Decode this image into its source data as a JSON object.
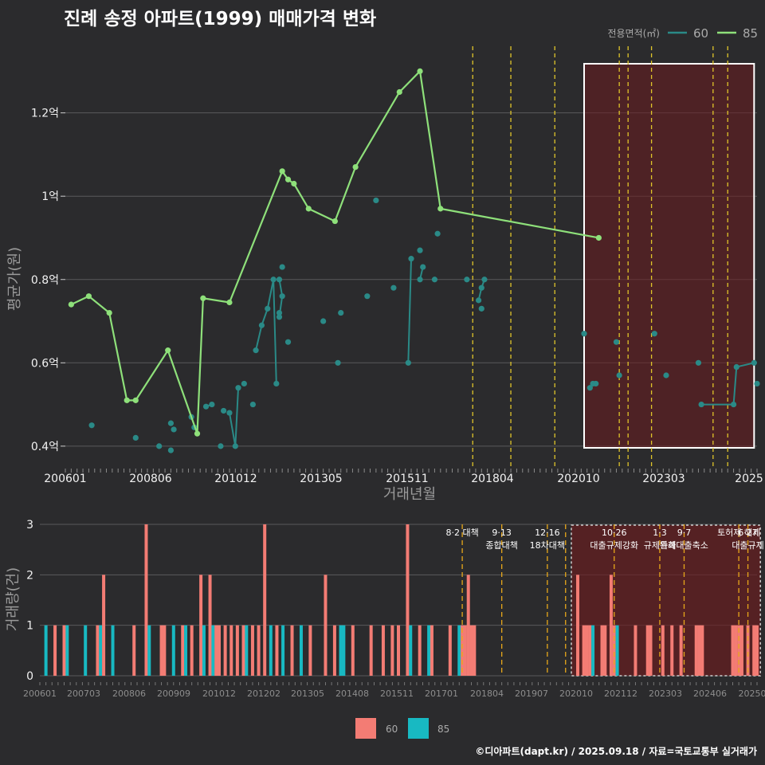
{
  "title": "진례 송정 아파트(1999) 매매가격 변화",
  "credit": "©디아파트(dapt.kr) / 2025.09.18 / 자료=국토교통부 실거래가",
  "colors": {
    "s60": "#2a8a87",
    "s85": "#8ee07a",
    "bar60": "#f37c74",
    "bar85": "#18b9c2",
    "vline": "#e0c52a",
    "vline2": "#e8a81a",
    "hilite": "#6b1c1f"
  },
  "chart_data": [
    {
      "type": "line",
      "xlabel": "거래년월",
      "ylabel": "평균가(원)",
      "xlim": [
        "2006-01",
        "2025-09"
      ],
      "ylim": [
        0.35,
        1.36
      ],
      "x_tick_labels": [
        "200601",
        "200806",
        "201012",
        "201305",
        "201511",
        "201804",
        "202010",
        "202303",
        "2025"
      ],
      "y_tick_labels": [
        "0.4억",
        "0.6억",
        "0.8억",
        "1억",
        "1.2억"
      ],
      "y_tick_values": [
        0.4,
        0.6,
        0.8,
        1.0,
        1.2
      ],
      "legend": {
        "title": "전용면적(㎡)",
        "position": "top-right"
      },
      "highlight": {
        "from": "2020-10",
        "to": "2025-08"
      },
      "event_lines": [
        "2017-08",
        "2018-09",
        "2019-12",
        "2021-10",
        "2022-01",
        "2022-09",
        "2024-06",
        "2024-11"
      ],
      "series": [
        {
          "name": "85",
          "points": [
            [
              "2006-03",
              0.74
            ],
            [
              "2006-09",
              0.76
            ],
            [
              "2007-04",
              0.72
            ],
            [
              "2007-10",
              0.51
            ],
            [
              "2008-01",
              0.51
            ],
            [
              "2008-12",
              0.63
            ],
            [
              "2009-10",
              0.43
            ],
            [
              "2009-12",
              0.755
            ],
            [
              "2010-09",
              0.745
            ],
            [
              "2012-03",
              1.06
            ],
            [
              "2012-05",
              1.04
            ],
            [
              "2012-07",
              1.03
            ],
            [
              "2012-12",
              0.97
            ],
            [
              "2013-09",
              0.94
            ],
            [
              "2014-04",
              1.07
            ],
            [
              "2015-07",
              1.25
            ],
            [
              "2016-02",
              1.3
            ],
            [
              "2016-09",
              0.97
            ],
            [
              "2021-03",
              0.9
            ]
          ]
        },
        {
          "name": "60",
          "points": [
            [
              "2006-10",
              0.45
            ],
            [
              "2008-01",
              0.42
            ],
            [
              "2008-09",
              0.4
            ],
            [
              "2009-01",
              0.39
            ],
            [
              "2009-02",
              0.44
            ],
            [
              "2009-01",
              0.455
            ],
            [
              "2009-08",
              0.47
            ],
            [
              "2009-09",
              0.445
            ],
            [
              "2010-01",
              0.495
            ],
            [
              "2010-03",
              0.5
            ],
            [
              "2010-06",
              0.4
            ],
            [
              "2010-07",
              0.485
            ],
            [
              "2010-09",
              0.48
            ],
            [
              "2010-11",
              0.4
            ],
            [
              "2010-12",
              0.54
            ],
            [
              "2011-02",
              0.55
            ],
            [
              "2011-05",
              0.5
            ],
            [
              "2011-06",
              0.63
            ],
            [
              "2011-08",
              0.69
            ],
            [
              "2011-10",
              0.73
            ],
            [
              "2011-12",
              0.8
            ],
            [
              "2012-01",
              0.55
            ],
            [
              "2012-02",
              0.8
            ],
            [
              "2012-03",
              0.76
            ],
            [
              "2012-02",
              0.71
            ],
            [
              "2012-02",
              0.72
            ],
            [
              "2012-03",
              0.83
            ],
            [
              "2012-05",
              0.65
            ],
            [
              "2013-05",
              0.7
            ],
            [
              "2013-10",
              0.6
            ],
            [
              "2013-11",
              0.72
            ],
            [
              "2014-08",
              0.76
            ],
            [
              "2014-11",
              0.99
            ],
            [
              "2015-05",
              0.78
            ],
            [
              "2015-10",
              0.6
            ],
            [
              "2015-11",
              0.85
            ],
            [
              "2016-02",
              0.87
            ],
            [
              "2016-02",
              0.8
            ],
            [
              "2016-03",
              0.83
            ],
            [
              "2016-07",
              0.8
            ],
            [
              "2016-08",
              0.91
            ],
            [
              "2017-06",
              0.8
            ],
            [
              "2017-10",
              0.75
            ],
            [
              "2017-11",
              0.78
            ],
            [
              "2017-12",
              0.8
            ],
            [
              "2017-11",
              0.73
            ],
            [
              "2020-10",
              0.67
            ],
            [
              "2020-12",
              0.54
            ],
            [
              "2021-01",
              0.55
            ],
            [
              "2021-02",
              0.55
            ],
            [
              "2021-09",
              0.65
            ],
            [
              "2021-10",
              0.57
            ],
            [
              "2022-10",
              0.67
            ],
            [
              "2023-02",
              0.57
            ],
            [
              "2024-01",
              0.6
            ],
            [
              "2024-02",
              0.5
            ],
            [
              "2025-01",
              0.5
            ],
            [
              "2025-02",
              0.59
            ],
            [
              "2025-08",
              0.6
            ],
            [
              "2025-09",
              0.55
            ]
          ]
        }
      ]
    },
    {
      "type": "bar",
      "ylabel": "거래량(건)",
      "ylim": [
        0,
        3
      ],
      "y_tick_labels": [
        "0",
        "1",
        "2",
        "3"
      ],
      "x_tick_labels": [
        "200601",
        "200703",
        "200806",
        "200909",
        "201012",
        "201202",
        "201305",
        "201408",
        "201511",
        "201701",
        "201804",
        "201907",
        "202010",
        "202112",
        "202303",
        "202406",
        "20250"
      ],
      "legend": {
        "position": "bottom",
        "items": [
          "60",
          "85"
        ]
      },
      "highlight": {
        "from": "2020-10",
        "to": "2025-08"
      },
      "events": [
        {
          "x": "2017-08",
          "labels": [
            "8·2 대책"
          ]
        },
        {
          "x": "2018-09",
          "labels": [
            "9·13",
            "종합대책"
          ]
        },
        {
          "x": "2019-12",
          "labels": [
            "12·16",
            "18차대책"
          ]
        },
        {
          "x": "2020-06",
          "labels": []
        },
        {
          "x": "2021-10",
          "labels": [
            "10·26",
            "대출규제강화"
          ]
        },
        {
          "x": "2023-01",
          "labels": [
            "1·3",
            "규제완화"
          ]
        },
        {
          "x": "2023-09",
          "labels": [
            "9·7",
            "특례대출축소"
          ]
        },
        {
          "x": "2025-06",
          "labels": [
            "6·27",
            "대출규제"
          ]
        },
        {
          "x": "2025-03",
          "labels": [
            "토허제 해제"
          ]
        }
      ],
      "bars": [
        [
          "2006-03",
          1,
          "85"
        ],
        [
          "2006-06",
          1,
          "60"
        ],
        [
          "2006-09",
          1,
          "60"
        ],
        [
          "2006-10",
          1,
          "85"
        ],
        [
          "2007-04",
          1,
          "85"
        ],
        [
          "2007-08",
          1,
          "60"
        ],
        [
          "2007-09",
          1,
          "85"
        ],
        [
          "2007-10",
          2,
          "60"
        ],
        [
          "2008-01",
          1,
          "85"
        ],
        [
          "2008-08",
          1,
          "60"
        ],
        [
          "2008-12",
          3,
          "60"
        ],
        [
          "2009-01",
          1,
          "85"
        ],
        [
          "2009-05",
          1,
          "60"
        ],
        [
          "2009-06",
          1,
          "60"
        ],
        [
          "2009-09",
          1,
          "85"
        ],
        [
          "2009-12",
          1,
          "60"
        ],
        [
          "2010-01",
          1,
          "85"
        ],
        [
          "2010-03",
          1,
          "60"
        ],
        [
          "2010-06",
          2,
          "60"
        ],
        [
          "2010-07",
          1,
          "85"
        ],
        [
          "2010-09",
          2,
          "60"
        ],
        [
          "2010-10",
          1,
          "85"
        ],
        [
          "2010-11",
          1,
          "60"
        ],
        [
          "2010-12",
          1,
          "60"
        ],
        [
          "2011-02",
          1,
          "60"
        ],
        [
          "2011-04",
          1,
          "60"
        ],
        [
          "2011-06",
          1,
          "60"
        ],
        [
          "2011-08",
          1,
          "60"
        ],
        [
          "2011-09",
          1,
          "85"
        ],
        [
          "2011-11",
          1,
          "60"
        ],
        [
          "2012-01",
          1,
          "60"
        ],
        [
          "2012-03",
          3,
          "60"
        ],
        [
          "2012-05",
          1,
          "85"
        ],
        [
          "2012-07",
          1,
          "60"
        ],
        [
          "2012-09",
          1,
          "85"
        ],
        [
          "2012-12",
          1,
          "60"
        ],
        [
          "2013-03",
          1,
          "85"
        ],
        [
          "2013-06",
          1,
          "60"
        ],
        [
          "2013-11",
          2,
          "60"
        ],
        [
          "2014-02",
          1,
          "60"
        ],
        [
          "2014-04",
          1,
          "85"
        ],
        [
          "2014-05",
          1,
          "85"
        ],
        [
          "2014-08",
          1,
          "60"
        ],
        [
          "2015-02",
          1,
          "60"
        ],
        [
          "2015-06",
          1,
          "60"
        ],
        [
          "2015-09",
          1,
          "60"
        ],
        [
          "2015-11",
          1,
          "60"
        ],
        [
          "2016-02",
          3,
          "60"
        ],
        [
          "2016-03",
          1,
          "85"
        ],
        [
          "2016-06",
          1,
          "60"
        ],
        [
          "2016-09",
          1,
          "85"
        ],
        [
          "2016-10",
          1,
          "60"
        ],
        [
          "2017-04",
          1,
          "60"
        ],
        [
          "2017-07",
          1,
          "85"
        ],
        [
          "2017-08",
          1,
          "60"
        ],
        [
          "2017-09",
          1,
          "60"
        ],
        [
          "2017-10",
          2,
          "60"
        ],
        [
          "2017-11",
          1,
          "60"
        ],
        [
          "2017-12",
          1,
          "60"
        ],
        [
          "2020-10",
          2,
          "60"
        ],
        [
          "2020-12",
          1,
          "60"
        ],
        [
          "2021-01",
          1,
          "60"
        ],
        [
          "2021-02",
          1,
          "60"
        ],
        [
          "2021-03",
          1,
          "85"
        ],
        [
          "2021-06",
          1,
          "60"
        ],
        [
          "2021-07",
          1,
          "60"
        ],
        [
          "2021-09",
          2,
          "60"
        ],
        [
          "2021-10",
          1,
          "60"
        ],
        [
          "2021-11",
          1,
          "85"
        ],
        [
          "2022-05",
          1,
          "60"
        ],
        [
          "2022-09",
          1,
          "60"
        ],
        [
          "2022-10",
          1,
          "60"
        ],
        [
          "2023-02",
          1,
          "60"
        ],
        [
          "2023-05",
          1,
          "60"
        ],
        [
          "2023-08",
          1,
          "60"
        ],
        [
          "2024-01",
          1,
          "60"
        ],
        [
          "2024-02",
          1,
          "60"
        ],
        [
          "2024-03",
          1,
          "60"
        ],
        [
          "2025-01",
          1,
          "60"
        ],
        [
          "2025-02",
          1,
          "60"
        ],
        [
          "2025-03",
          1,
          "60"
        ],
        [
          "2025-04",
          1,
          "60"
        ],
        [
          "2025-06",
          1,
          "60"
        ],
        [
          "2025-08",
          1,
          "60"
        ],
        [
          "2025-09",
          1,
          "60"
        ]
      ]
    }
  ]
}
